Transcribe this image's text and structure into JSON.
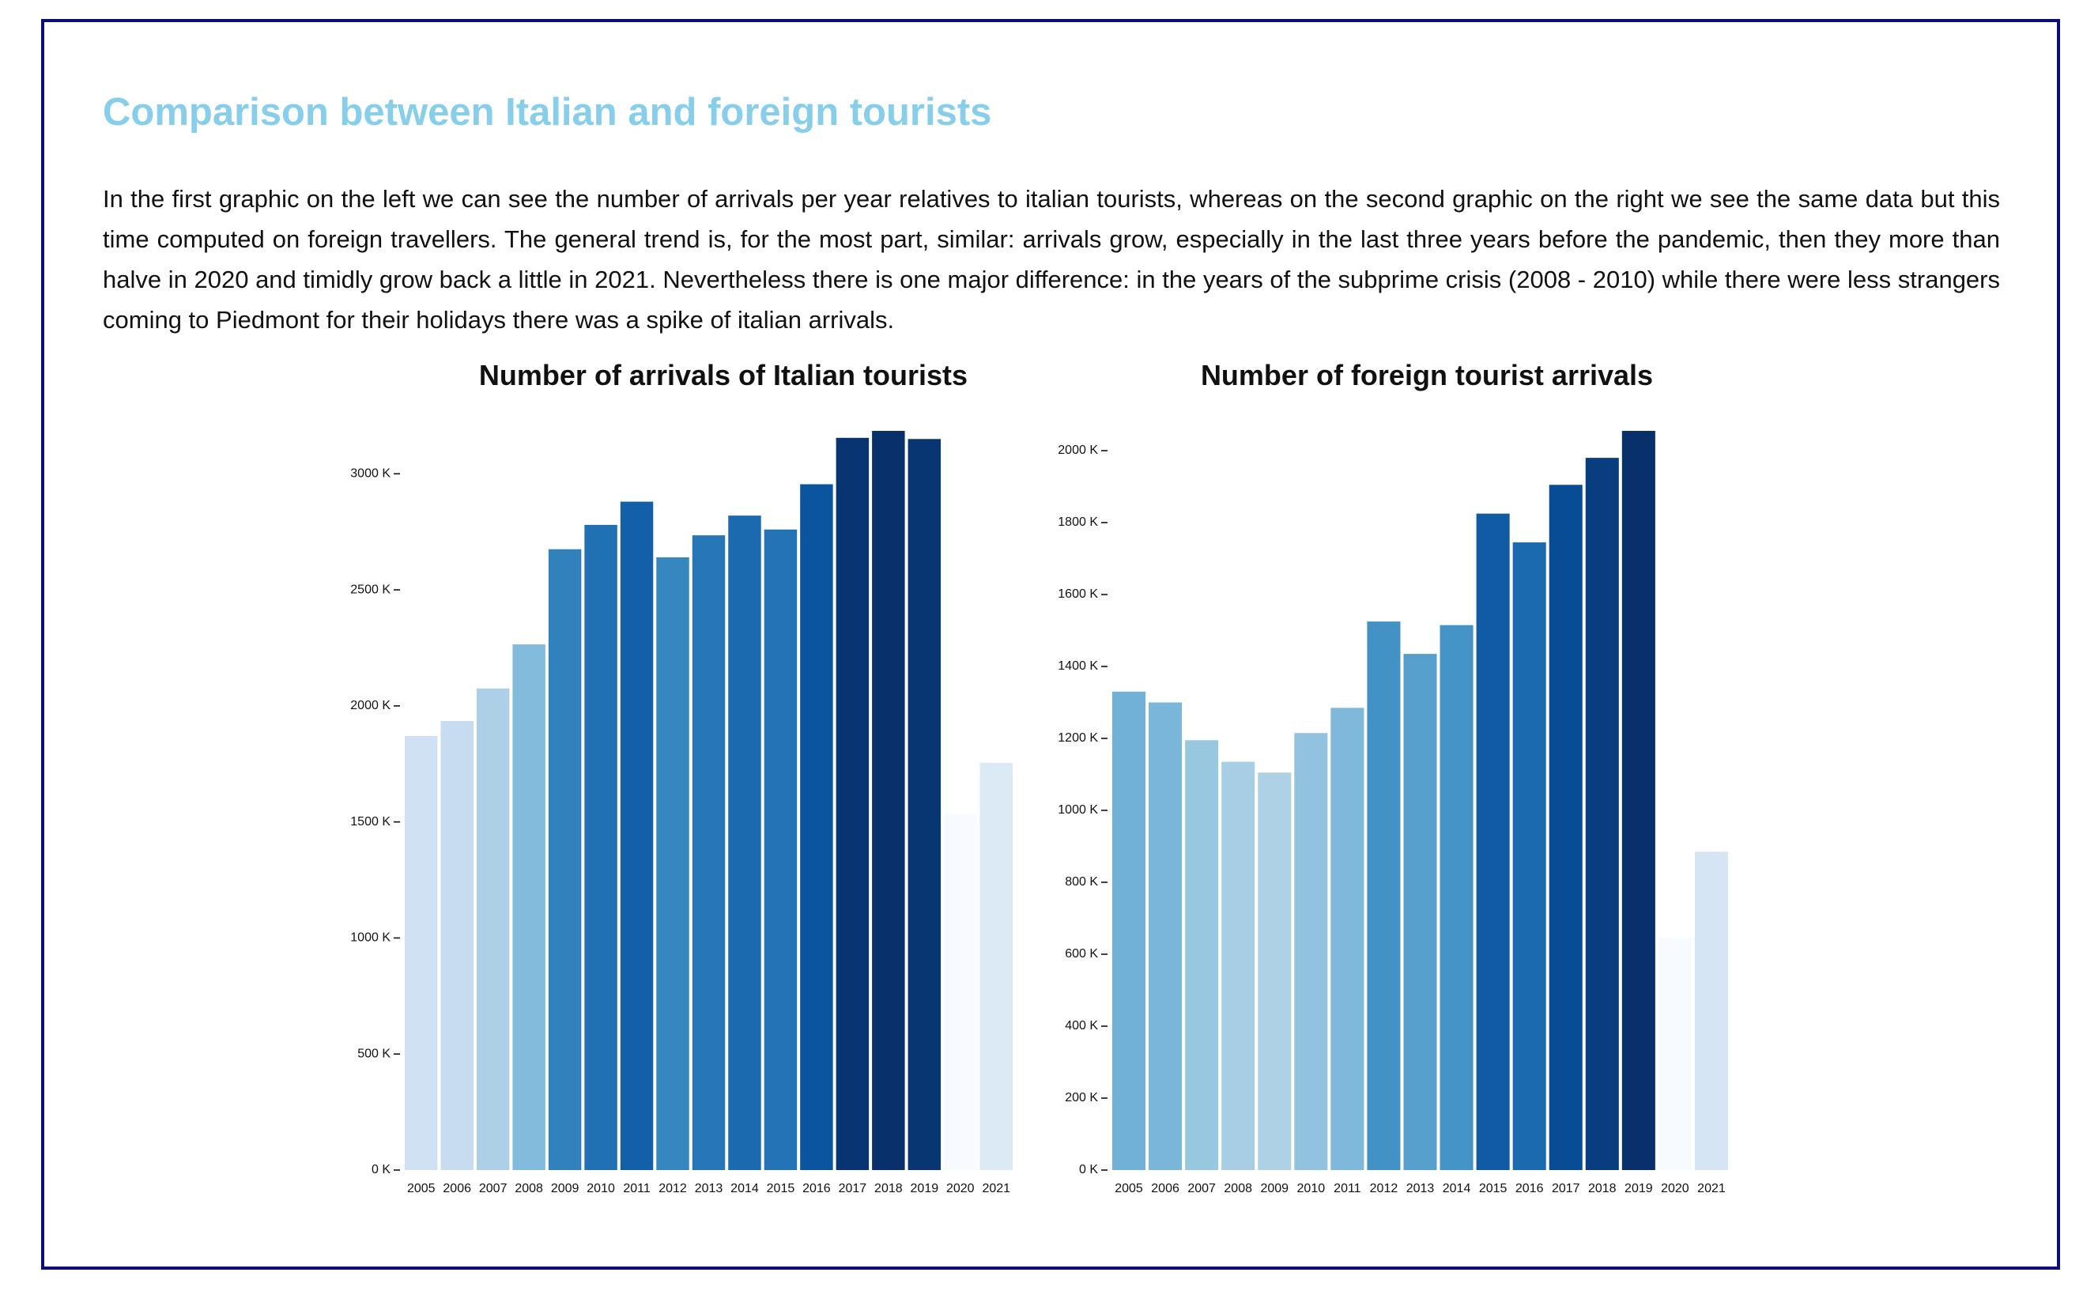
{
  "page": {
    "title": "Comparison between Italian and foreign tourists",
    "description": "In the first graphic on the left we can see the number of arrivals per year relatives to italian tourists, whereas on the second graphic on the right we see the same data but this time computed on foreign travellers. The general trend is, for the most part, similar: arrivals grow, especially in the last three years before the pandemic, then they more than halve in 2020 and timidly grow back a little in 2021. Nevertheless there is one major difference: in the years of the subprime crisis (2008 - 2010) while there were less strangers coming to Piedmont for their holidays there was a spike of italian arrivals."
  },
  "colors": {
    "frame_border": "#0d0d7a",
    "title": "#87ceeb",
    "palette": "Blues"
  },
  "chart_data": [
    {
      "type": "bar",
      "title": "Number of arrivals of Italian tourists",
      "xlabel": "",
      "ylabel": "",
      "categories": [
        "2005",
        "2006",
        "2007",
        "2008",
        "2009",
        "2010",
        "2011",
        "2012",
        "2013",
        "2014",
        "2015",
        "2016",
        "2017",
        "2018",
        "2019",
        "2020",
        "2021"
      ],
      "values": [
        1870,
        1935,
        2075,
        2265,
        2675,
        2780,
        2880,
        2640,
        2735,
        2820,
        2760,
        2955,
        3155,
        3185,
        3150,
        1535,
        1755
      ],
      "value_unit": "thousands",
      "tick_suffix": " K",
      "ylim": [
        0,
        3185
      ],
      "yticks": [
        0,
        500,
        1000,
        1500,
        2000,
        2500,
        3000
      ],
      "color_encodes": "value",
      "grid": false
    },
    {
      "type": "bar",
      "title": "Number of foreign tourist arrivals",
      "xlabel": "",
      "ylabel": "",
      "categories": [
        "2005",
        "2006",
        "2007",
        "2008",
        "2009",
        "2010",
        "2011",
        "2012",
        "2013",
        "2014",
        "2015",
        "2016",
        "2017",
        "2018",
        "2019",
        "2020",
        "2021"
      ],
      "values": [
        1330,
        1300,
        1195,
        1135,
        1105,
        1215,
        1285,
        1525,
        1435,
        1515,
        1825,
        1745,
        1905,
        1980,
        2055,
        645,
        885
      ],
      "value_unit": "thousands",
      "tick_suffix": " K",
      "ylim": [
        0,
        2055
      ],
      "yticks": [
        0,
        200,
        400,
        600,
        800,
        1000,
        1200,
        1400,
        1600,
        1800,
        2000
      ],
      "color_encodes": "value",
      "grid": false
    }
  ]
}
